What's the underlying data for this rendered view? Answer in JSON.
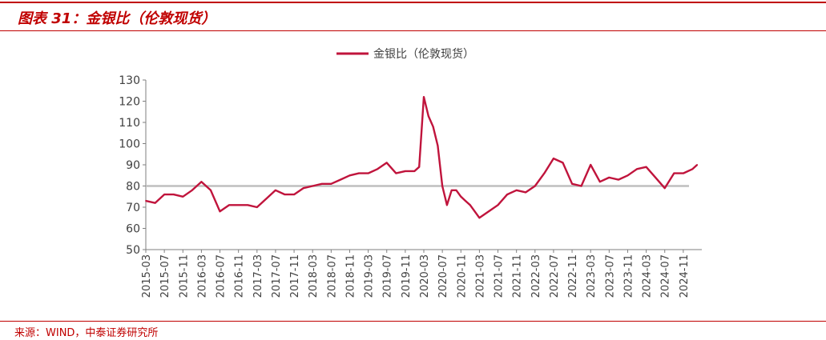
{
  "figure": {
    "title": "图表 31：金银比（伦敦现货）",
    "source": "来源：WIND，中泰证券研究所"
  },
  "colors": {
    "accent": "#c00000",
    "series": "#c0143c",
    "reference": "#bfbfbf",
    "axis": "#7f7f7f"
  },
  "chart_data": {
    "type": "line",
    "title": "",
    "xlabel": "",
    "ylabel": "",
    "ylim": [
      50,
      130
    ],
    "yticks": [
      50,
      60,
      70,
      80,
      90,
      100,
      110,
      120,
      130
    ],
    "xlim": [
      "2015-03",
      "2025-03"
    ],
    "xticks": [
      "2015-03",
      "2015-07",
      "2015-11",
      "2016-03",
      "2016-07",
      "2016-11",
      "2017-03",
      "2017-07",
      "2017-11",
      "2018-03",
      "2018-07",
      "2018-11",
      "2019-03",
      "2019-07",
      "2019-11",
      "2020-03",
      "2020-07",
      "2020-11",
      "2021-03",
      "2021-07",
      "2021-11",
      "2022-03",
      "2022-07",
      "2022-11",
      "2023-03",
      "2023-07",
      "2023-11",
      "2024-03",
      "2024-07",
      "2024-11"
    ],
    "grid": false,
    "legend": "top-center",
    "series": [
      {
        "name": "金银比（伦敦现货）",
        "x": [
          "2015-03",
          "2015-05",
          "2015-07",
          "2015-09",
          "2015-11",
          "2016-01",
          "2016-03",
          "2016-05",
          "2016-07",
          "2016-09",
          "2016-11",
          "2017-01",
          "2017-03",
          "2017-05",
          "2017-07",
          "2017-09",
          "2017-11",
          "2018-01",
          "2018-03",
          "2018-05",
          "2018-07",
          "2018-09",
          "2018-11",
          "2019-01",
          "2019-03",
          "2019-05",
          "2019-07",
          "2019-09",
          "2019-11",
          "2020-01",
          "2020-02",
          "2020-03",
          "2020-04",
          "2020-05",
          "2020-06",
          "2020-07",
          "2020-08",
          "2020-09",
          "2020-10",
          "2020-11",
          "2020-12",
          "2021-01",
          "2021-02",
          "2021-03",
          "2021-05",
          "2021-07",
          "2021-09",
          "2021-11",
          "2022-01",
          "2022-03",
          "2022-05",
          "2022-07",
          "2022-09",
          "2022-11",
          "2023-01",
          "2023-03",
          "2023-05",
          "2023-07",
          "2023-09",
          "2023-11",
          "2024-01",
          "2024-03",
          "2024-05",
          "2024-07",
          "2024-09",
          "2024-11",
          "2025-01",
          "2025-02"
        ],
        "values": [
          73,
          72,
          76,
          76,
          75,
          78,
          82,
          78,
          68,
          71,
          71,
          71,
          70,
          74,
          78,
          76,
          76,
          79,
          80,
          81,
          81,
          83,
          85,
          86,
          86,
          88,
          91,
          86,
          87,
          87,
          89,
          122,
          113,
          108,
          99,
          80,
          71,
          78,
          78,
          75,
          73,
          71,
          68,
          65,
          68,
          71,
          76,
          78,
          77,
          80,
          86,
          93,
          91,
          81,
          80,
          90,
          82,
          84,
          83,
          85,
          88,
          89,
          84,
          79,
          86,
          86,
          88,
          90
        ]
      }
    ],
    "reference_line": {
      "y": 80
    }
  }
}
